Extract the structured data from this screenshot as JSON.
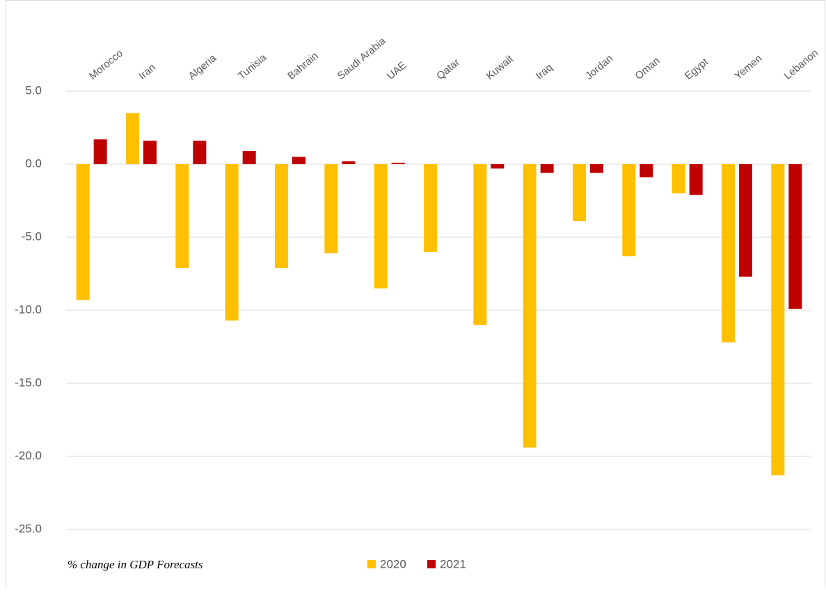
{
  "chart_data": {
    "type": "bar",
    "note": "% change in GDP Forecasts",
    "categories": [
      "Morocco",
      "Iran",
      "Algeria",
      "Tunisia",
      "Bahrain",
      "Saudi Arabia",
      "UAE",
      "Qatar",
      "Kuwait",
      "Iraq",
      "Jordan",
      "Oman",
      "Egypt",
      "Yemen",
      "Lebanon"
    ],
    "series": [
      {
        "name": "2020",
        "color": "#FFC000",
        "values": [
          -9.3,
          3.5,
          -7.1,
          -10.7,
          -7.1,
          -6.1,
          -8.5,
          -6.0,
          -11.0,
          -19.4,
          -3.9,
          -6.3,
          -2.0,
          -12.2,
          -21.3
        ]
      },
      {
        "name": "2021",
        "color": "#C00000",
        "values": [
          1.7,
          1.6,
          1.6,
          0.9,
          0.5,
          0.2,
          0.1,
          0.0,
          -0.3,
          -0.6,
          -0.6,
          -0.9,
          -2.1,
          -7.7,
          -9.9
        ]
      }
    ],
    "ylim": [
      -25,
      5
    ],
    "yticks": [
      {
        "value": 5,
        "label": "5.0"
      },
      {
        "value": 0,
        "label": "0.0"
      },
      {
        "value": -5,
        "label": "-5.0"
      },
      {
        "value": -10,
        "label": "-10.0"
      },
      {
        "value": -15,
        "label": "-15.0"
      },
      {
        "value": -20,
        "label": "-20.0"
      },
      {
        "value": -25,
        "label": "-25.0"
      }
    ],
    "grid": true,
    "legend": "bottom"
  }
}
